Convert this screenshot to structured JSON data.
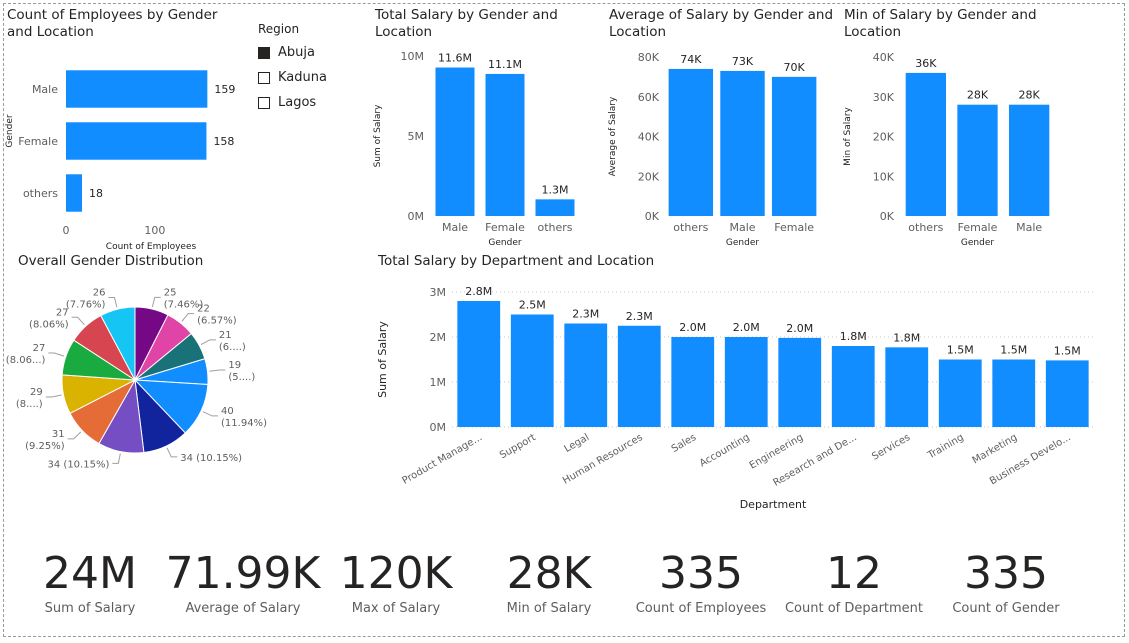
{
  "colors": {
    "bar": "#118DFF",
    "text": "#252423",
    "muted": "#605e5c",
    "grid": "#c8c6c4"
  },
  "charts": {
    "count_gender": {
      "title": "Count of Employees by Gender and Location"
    },
    "total_salary": {
      "title": "Total Salary by Gender and Location"
    },
    "avg_salary": {
      "title": "Average of Salary by Gender and Location"
    },
    "min_salary": {
      "title": "Min of Salary by Gender and Location"
    },
    "pie": {
      "title": "Overall Gender Distribution"
    },
    "dept": {
      "title": "Total Salary by Department and Location"
    }
  },
  "legend": {
    "title": "Region",
    "items": [
      {
        "label": "Abuja",
        "checked": true
      },
      {
        "label": "Kaduna",
        "checked": false
      },
      {
        "label": "Lagos",
        "checked": false
      }
    ]
  },
  "chart_data": [
    {
      "type": "bar",
      "orientation": "horizontal",
      "title": "Count of Employees by Gender and Location",
      "categories": [
        "Male",
        "Female",
        "others"
      ],
      "values": [
        159,
        158,
        18
      ],
      "data_labels": [
        "159",
        "158",
        "18"
      ],
      "xlabel": "Count of Employees",
      "ylabel": "Gender",
      "xticks": [
        "0",
        "100"
      ],
      "xlim": [
        0,
        180
      ]
    },
    {
      "type": "bar",
      "title": "Total Salary by Gender and Location",
      "categories": [
        "Male",
        "Female",
        "others"
      ],
      "values": [
        11600000,
        11100000,
        1300000
      ],
      "data_labels": [
        "11.6M",
        "11.1M",
        "1.3M"
      ],
      "xlabel": "Gender",
      "ylabel": "Sum of Salary",
      "yticks": [
        "0M",
        "5M",
        "10M"
      ],
      "ylim": [
        0,
        12500000
      ]
    },
    {
      "type": "bar",
      "title": "Average of Salary by Gender and Location",
      "categories": [
        "others",
        "Male",
        "Female"
      ],
      "values": [
        74000,
        73000,
        70000
      ],
      "data_labels": [
        "74K",
        "73K",
        "70K"
      ],
      "xlabel": "Gender",
      "ylabel": "Average of Salary",
      "yticks": [
        "0K",
        "20K",
        "40K",
        "60K",
        "80K"
      ],
      "ylim": [
        0,
        80000
      ]
    },
    {
      "type": "bar",
      "title": "Min of Salary by Gender and Location",
      "categories": [
        "others",
        "Female",
        "Male"
      ],
      "values": [
        36000,
        28000,
        28000
      ],
      "data_labels": [
        "36K",
        "28K",
        "28K"
      ],
      "xlabel": "Gender",
      "ylabel": "Min of Salary",
      "yticks": [
        "0K",
        "10K",
        "20K",
        "30K",
        "40K"
      ],
      "ylim": [
        0,
        40000
      ]
    },
    {
      "type": "pie",
      "title": "Overall Gender Distribution",
      "slices": [
        {
          "value": 25,
          "label": "25 (7.46%)",
          "color": "#750985"
        },
        {
          "value": 22,
          "label": "22 (6.57%)",
          "color": "#E044A7"
        },
        {
          "value": 21,
          "label": "21 (6....)",
          "color": "#197278"
        },
        {
          "value": 19,
          "label": "19 (5....)",
          "color": "#118DFF"
        },
        {
          "value": 40,
          "label": "40 (11.94%)",
          "color": "#118DFF"
        },
        {
          "value": 34,
          "label": "34 (10.15%)",
          "color": "#12239E"
        },
        {
          "value": 34,
          "label": "34 (10.15%)",
          "color": "#744EC2"
        },
        {
          "value": 31,
          "label": "31 (9.25%)",
          "color": "#E66C37"
        },
        {
          "value": 29,
          "label": "29 (8....)",
          "color": "#D9B300"
        },
        {
          "value": 27,
          "label": "27 (8.06...)",
          "color": "#1AAB40"
        },
        {
          "value": 27,
          "label": "27 (8.06%)",
          "color": "#D64550"
        },
        {
          "value": 26,
          "label": "26 (7.76%)",
          "color": "#15C6F4"
        }
      ]
    },
    {
      "type": "bar",
      "title": "Total Salary by Department and Location",
      "categories": [
        "Product Manage...",
        "Support",
        "Legal",
        "Human Resources",
        "Sales",
        "Accounting",
        "Engineering",
        "Research and De...",
        "Services",
        "Training",
        "Marketing",
        "Business Develo..."
      ],
      "values": [
        2800000,
        2500000,
        2300000,
        2250000,
        2000000,
        2000000,
        1980000,
        1800000,
        1770000,
        1500000,
        1500000,
        1480000
      ],
      "data_labels": [
        "2.8M",
        "2.5M",
        "2.3M",
        "2.3M",
        "2.0M",
        "2.0M",
        "2.0M",
        "1.8M",
        "1.8M",
        "1.5M",
        "1.5M",
        "1.5M"
      ],
      "xlabel": "Department",
      "ylabel": "Sum of Salary",
      "yticks": [
        "0M",
        "1M",
        "2M",
        "3M"
      ],
      "ylim": [
        0,
        3000000
      ],
      "grid": true
    }
  ],
  "kpis": [
    {
      "value": "24M",
      "label": "Sum of Salary"
    },
    {
      "value": "71.99K",
      "label": "Average of Salary"
    },
    {
      "value": "120K",
      "label": "Max of Salary"
    },
    {
      "value": "28K",
      "label": "Min of Salary"
    },
    {
      "value": "335",
      "label": "Count of Employees"
    },
    {
      "value": "12",
      "label": "Count of Department"
    },
    {
      "value": "335",
      "label": "Count of Gender"
    }
  ]
}
